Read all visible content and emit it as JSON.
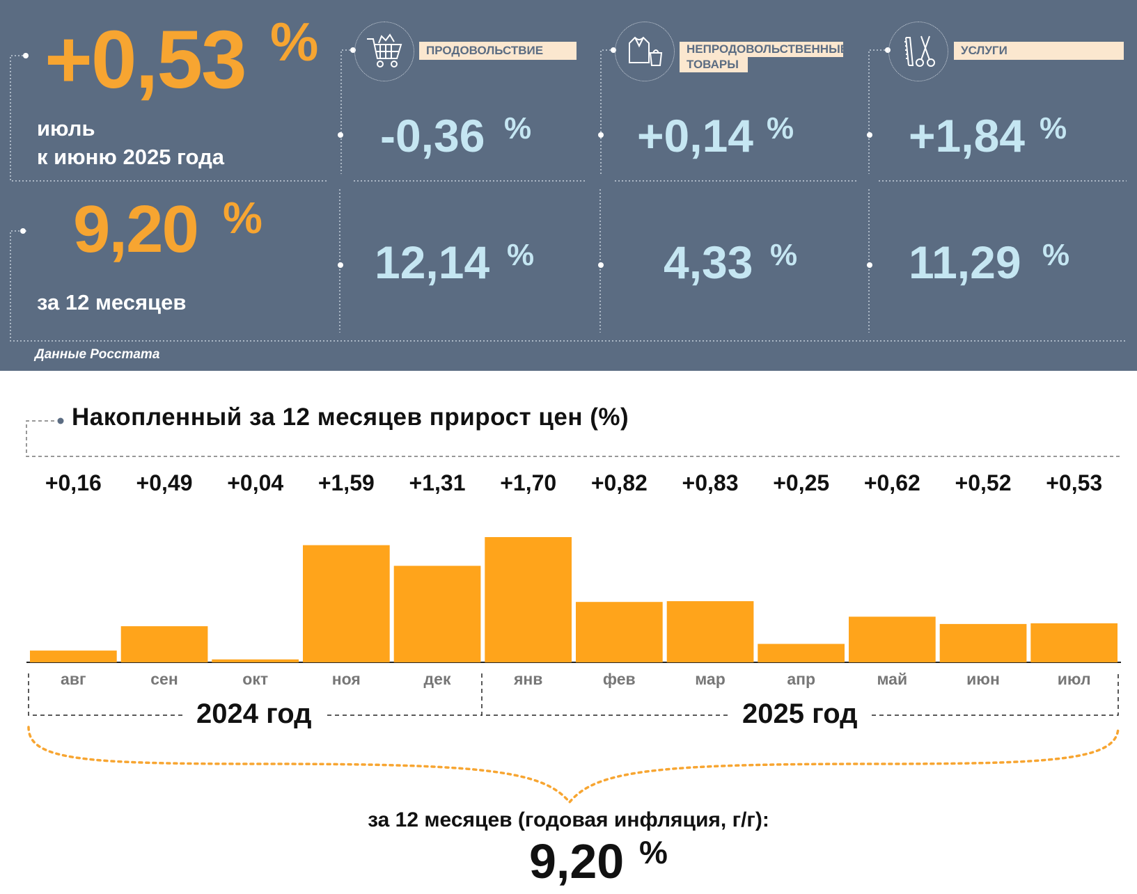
{
  "headline": {
    "monthly_value": "+0,53",
    "monthly_pct": "%",
    "monthly_caption_1": "июль",
    "monthly_caption_2": "к июню 2025 года",
    "annual_value": "9,20",
    "annual_pct": "%",
    "annual_caption": "за 12 месяцев"
  },
  "categories": [
    {
      "label": "ПРОДОВОЛЬСТВИЕ",
      "icon": "shopping-cart-icon",
      "monthly": "-0,36",
      "annual": "12,14",
      "pct": "%"
    },
    {
      "label_line1": "НЕПРОДОВОЛЬСТВЕННЫЕ",
      "label_line2": "ТОВАРЫ",
      "icon": "clothes-icon",
      "monthly": "+0,14",
      "annual": "4,33",
      "pct": "%"
    },
    {
      "label": "УСЛУГИ",
      "icon": "scissors-comb-icon",
      "monthly": "+1,84",
      "annual": "11,29",
      "pct": "%"
    }
  ],
  "source": "Данные Росстата",
  "colors": {
    "panel": "#5b6c82",
    "accent": "#f7a531",
    "highlight": "#c5e6f2",
    "label_bg": "#fbe7cf"
  },
  "chart_data": {
    "type": "bar",
    "title": "Накопленный за 12 месяцев прирост цен (%)",
    "categories": [
      "авг",
      "сен",
      "окт",
      "ноя",
      "дек",
      "янв",
      "фев",
      "мар",
      "апр",
      "май",
      "июн",
      "июл"
    ],
    "values": [
      0.16,
      0.49,
      0.04,
      1.59,
      1.31,
      1.7,
      0.82,
      0.83,
      0.25,
      0.62,
      0.52,
      0.53
    ],
    "value_labels": [
      "+0,16",
      "+0,49",
      "+0,04",
      "+1,59",
      "+1,31",
      "+1,70",
      "+0,82",
      "+0,83",
      "+0,25",
      "+0,62",
      "+0,52",
      "+0,53"
    ],
    "year_groups": [
      {
        "label": "2024 год",
        "months": 5
      },
      {
        "label": "2025 год",
        "months": 7
      }
    ],
    "bar_color": "#ffa41b",
    "ylim": [
      0,
      1.7
    ],
    "grid": false,
    "summary_caption": "за 12 месяцев (годовая инфляция, г/г):",
    "summary_value": "9,20",
    "summary_pct": "%"
  }
}
